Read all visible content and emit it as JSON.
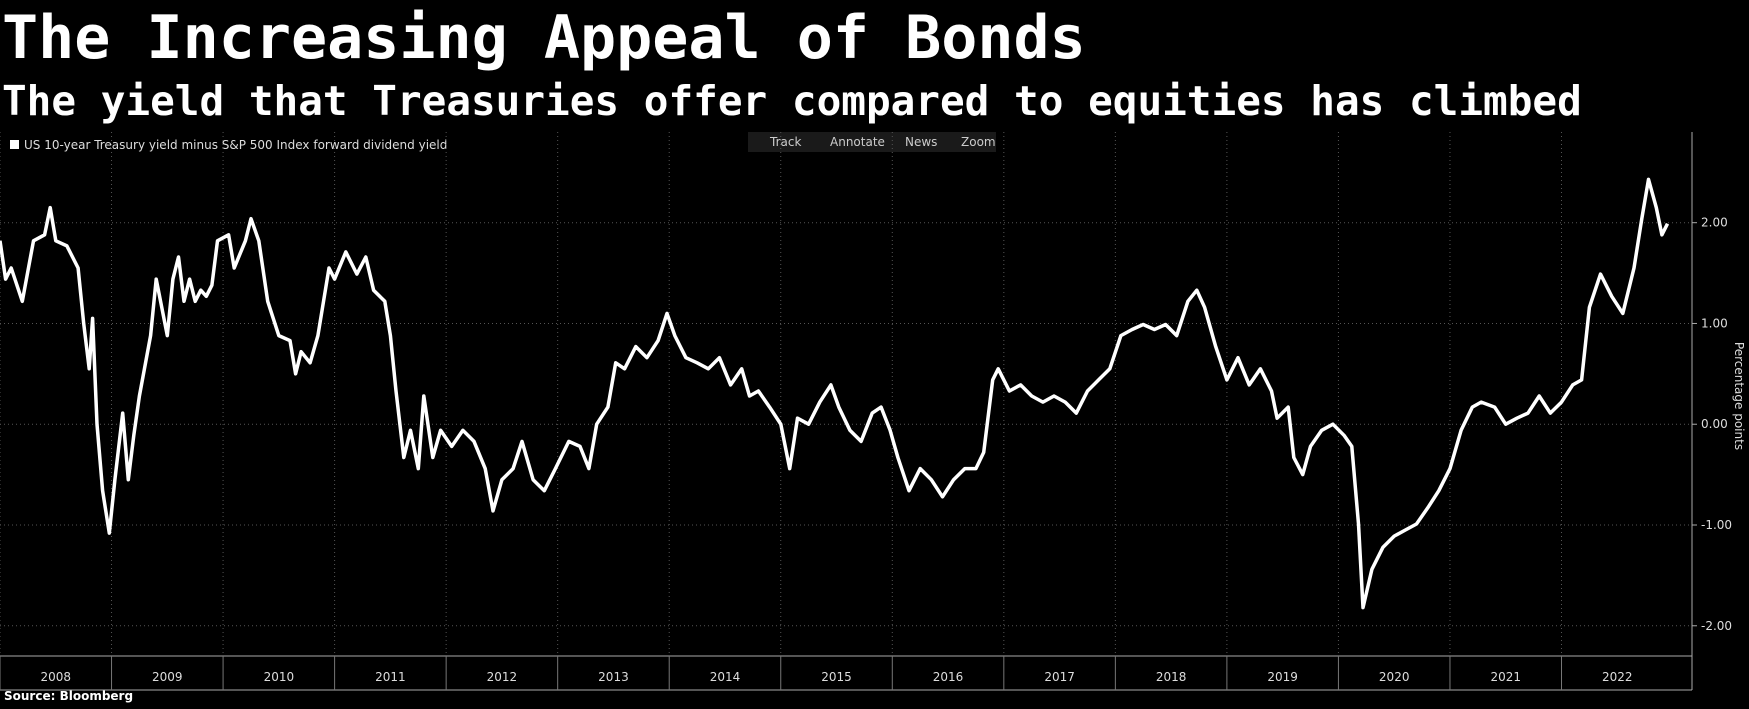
{
  "chart_data": {
    "type": "line",
    "title": "The Increasing Appeal of Bonds",
    "subtitle": "The yield that Treasuries offer compared to equities has climbed",
    "y_axis_label": "Percentage points",
    "source": "Source: Bloomberg",
    "ylim": [
      -2.3,
      2.9
    ],
    "yticks": [
      {
        "value": 2,
        "label": "2.00"
      },
      {
        "value": 1,
        "label": "1.00"
      },
      {
        "value": 0,
        "label": "0.00"
      },
      {
        "value": -1,
        "label": "-1.00"
      },
      {
        "value": -2,
        "label": "-2.00"
      }
    ],
    "xlim": [
      2008,
      2023.17
    ],
    "xticks": [
      {
        "value": 2008,
        "label": "2008"
      },
      {
        "value": 2009,
        "label": "2009"
      },
      {
        "value": 2010,
        "label": "2010"
      },
      {
        "value": 2011,
        "label": "2011"
      },
      {
        "value": 2012,
        "label": "2012"
      },
      {
        "value": 2013,
        "label": "2013"
      },
      {
        "value": 2014,
        "label": "2014"
      },
      {
        "value": 2015,
        "label": "2015"
      },
      {
        "value": 2016,
        "label": "2016"
      },
      {
        "value": 2017,
        "label": "2017"
      },
      {
        "value": 2018,
        "label": "2018"
      },
      {
        "value": 2019,
        "label": "2019"
      },
      {
        "value": 2020,
        "label": "2020"
      },
      {
        "value": 2021,
        "label": "2021"
      },
      {
        "value": 2022,
        "label": "2022"
      }
    ],
    "grid": true,
    "x": [
      2008.0,
      2008.05,
      2008.1,
      2008.2,
      2008.3,
      2008.4,
      2008.45,
      2008.5,
      2008.6,
      2008.7,
      2008.75,
      2008.8,
      2008.83,
      2008.87,
      2008.92,
      2008.98,
      2009.03,
      2009.1,
      2009.15,
      2009.2,
      2009.25,
      2009.35,
      2009.4,
      2009.5,
      2009.55,
      2009.6,
      2009.65,
      2009.7,
      2009.75,
      2009.8,
      2009.85,
      2009.9,
      2009.95,
      2010.05,
      2010.1,
      2010.2,
      2010.25,
      2010.32,
      2010.4,
      2010.5,
      2010.6,
      2010.65,
      2010.7,
      2010.78,
      2010.85,
      2010.95,
      2011.0,
      2011.1,
      2011.2,
      2011.28,
      2011.35,
      2011.45,
      2011.5,
      2011.55,
      2011.62,
      2011.68,
      2011.75,
      2011.8,
      2011.88,
      2011.95,
      2012.05,
      2012.15,
      2012.25,
      2012.35,
      2012.42,
      2012.5,
      2012.6,
      2012.68,
      2012.78,
      2012.88,
      2012.98,
      2013.1,
      2013.2,
      2013.28,
      2013.35,
      2013.45,
      2013.52,
      2013.6,
      2013.7,
      2013.8,
      2013.9,
      2013.98,
      2014.05,
      2014.15,
      2014.25,
      2014.35,
      2014.45,
      2014.55,
      2014.65,
      2014.72,
      2014.8,
      2014.9,
      2015.0,
      2015.08,
      2015.15,
      2015.25,
      2015.35,
      2015.45,
      2015.52,
      2015.62,
      2015.72,
      2015.82,
      2015.9,
      2015.98,
      2016.05,
      2016.15,
      2016.25,
      2016.35,
      2016.45,
      2016.55,
      2016.65,
      2016.75,
      2016.82,
      2016.9,
      2016.95,
      2017.05,
      2017.15,
      2017.25,
      2017.35,
      2017.45,
      2017.55,
      2017.65,
      2017.75,
      2017.85,
      2017.95,
      2018.05,
      2018.15,
      2018.25,
      2018.35,
      2018.45,
      2018.55,
      2018.65,
      2018.73,
      2018.8,
      2018.9,
      2019.0,
      2019.1,
      2019.2,
      2019.3,
      2019.4,
      2019.45,
      2019.55,
      2019.6,
      2019.68,
      2019.75,
      2019.85,
      2019.95,
      2020.05,
      2020.12,
      2020.18,
      2020.22,
      2020.3,
      2020.4,
      2020.5,
      2020.6,
      2020.7,
      2020.8,
      2020.9,
      2021.0,
      2021.1,
      2021.2,
      2021.28,
      2021.4,
      2021.5,
      2021.6,
      2021.7,
      2021.8,
      2021.9,
      2022.0,
      2022.1,
      2022.18,
      2022.25,
      2022.35,
      2022.45,
      2022.55,
      2022.65,
      2022.72,
      2022.78,
      2022.85,
      2022.9,
      2022.95
    ],
    "series": [
      {
        "name": "US 10-year Treasury yield minus S&P 500 Index forward dividend yield",
        "color": "#ffffff",
        "values": [
          1.82,
          1.44,
          1.55,
          1.22,
          1.82,
          1.88,
          2.15,
          1.82,
          1.77,
          1.55,
          1.0,
          0.55,
          1.05,
          0,
          -0.66,
          -1.08,
          -0.55,
          0.11,
          -0.55,
          -0.11,
          0.28,
          0.88,
          1.44,
          0.88,
          1.44,
          1.66,
          1.22,
          1.44,
          1.22,
          1.33,
          1.27,
          1.38,
          1.82,
          1.88,
          1.55,
          1.82,
          2.04,
          1.82,
          1.22,
          0.88,
          0.83,
          0.5,
          0.72,
          0.61,
          0.88,
          1.55,
          1.44,
          1.71,
          1.49,
          1.66,
          1.33,
          1.22,
          0.88,
          0.33,
          -0.33,
          -0.06,
          -0.44,
          0.28,
          -0.33,
          -0.06,
          -0.22,
          -0.06,
          -0.17,
          -0.44,
          -0.86,
          -0.55,
          -0.44,
          -0.17,
          -0.55,
          -0.66,
          -0.44,
          -0.17,
          -0.22,
          -0.44,
          0,
          0.17,
          0.61,
          0.55,
          0.77,
          0.66,
          0.83,
          1.1,
          0.88,
          0.66,
          0.61,
          0.55,
          0.66,
          0.39,
          0.55,
          0.28,
          0.33,
          0.17,
          0,
          -0.44,
          0.06,
          0,
          0.22,
          0.39,
          0.17,
          -0.06,
          -0.17,
          0.11,
          0.17,
          -0.06,
          -0.33,
          -0.66,
          -0.44,
          -0.55,
          -0.72,
          -0.55,
          -0.44,
          -0.44,
          -0.28,
          0.44,
          0.55,
          0.33,
          0.39,
          0.28,
          0.22,
          0.28,
          0.22,
          0.11,
          0.33,
          0.44,
          0.55,
          0.88,
          0.94,
          0.99,
          0.94,
          0.99,
          0.88,
          1.22,
          1.33,
          1.16,
          0.77,
          0.44,
          0.66,
          0.39,
          0.55,
          0.33,
          0.06,
          0.17,
          -0.33,
          -0.5,
          -0.22,
          -0.06,
          0,
          -0.11,
          -0.22,
          -0.99,
          -1.82,
          -1.44,
          -1.22,
          -1.11,
          -1.05,
          -0.99,
          -0.83,
          -0.66,
          -0.44,
          -0.06,
          0.17,
          0.22,
          0.17,
          0,
          0.06,
          0.11,
          0.28,
          0.11,
          0.22,
          0.39,
          0.44,
          1.16,
          1.49,
          1.27,
          1.1,
          1.55,
          2.04,
          2.43,
          2.15,
          1.88,
          1.99
        ]
      }
    ]
  },
  "toolbar": [
    "Track",
    "Annotate",
    "News",
    "Zoom"
  ]
}
